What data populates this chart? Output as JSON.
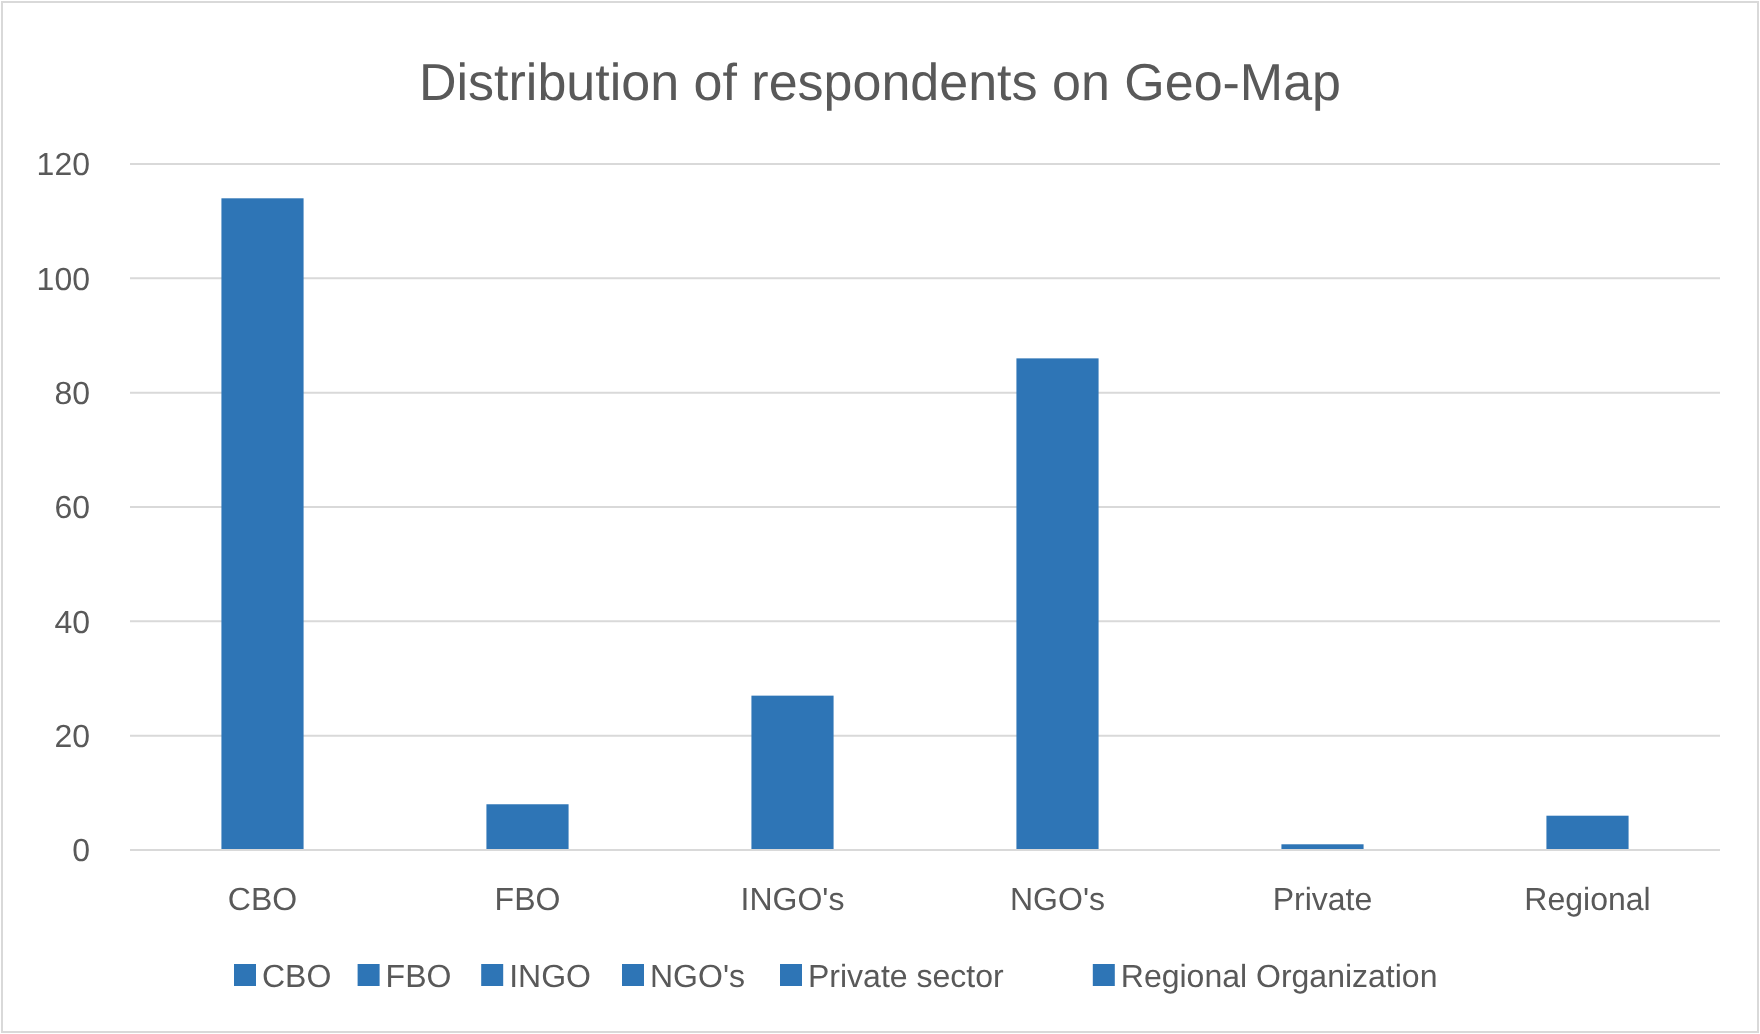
{
  "chart_data": {
    "type": "bar",
    "title": "Distribution of respondents on Geo-Map",
    "categories": [
      "CBO",
      "FBO",
      "INGO's",
      "NGO's",
      "Private",
      "Regional"
    ],
    "stacked": true,
    "series": [
      {
        "name": "CBO",
        "color": "#2e75b6",
        "values": [
          114,
          null,
          null,
          null,
          null,
          null
        ]
      },
      {
        "name": "FBO",
        "color": "#2e75b6",
        "values": [
          null,
          8,
          null,
          null,
          null,
          null
        ]
      },
      {
        "name": "INGO",
        "color": "#2e75b6",
        "values": [
          null,
          null,
          27,
          null,
          null,
          null
        ]
      },
      {
        "name": "NGO's",
        "color": "#2e75b6",
        "values": [
          null,
          null,
          null,
          86,
          null,
          null
        ]
      },
      {
        "name": "Private sector",
        "color": "#2e75b6",
        "values": [
          null,
          null,
          null,
          null,
          1,
          null
        ]
      },
      {
        "name": "Regional Organization",
        "color": "#2e75b6",
        "values": [
          null,
          null,
          null,
          null,
          null,
          6
        ]
      }
    ],
    "ylim": [
      0,
      120
    ],
    "yticks": [
      0,
      20,
      40,
      60,
      80,
      100,
      120
    ],
    "grid": "y",
    "legend": "bottom"
  }
}
